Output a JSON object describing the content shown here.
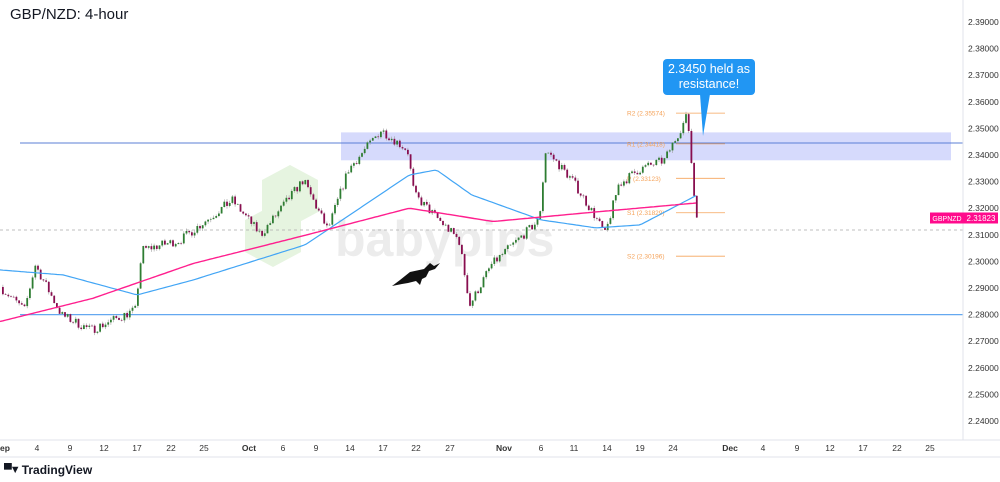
{
  "title": "GBP/NZD: 4-hour",
  "callout": "2.3450 held as resistance!",
  "brand": "TradingView",
  "watermark": "babypips",
  "symbol_tag": "GBPNZD",
  "last_price": "2.31823",
  "colors": {
    "up": "#2e7d32",
    "down": "#880e4f",
    "wick": "#9e9e9e",
    "ma_fast": "#42a5f5",
    "ma_slow": "#ff1f8e",
    "zone": "#cfd3fb",
    "level": "#2962ff",
    "pivot": "#f5a35a",
    "callout": "#2196f3",
    "price_tag": "#ff0a8c"
  },
  "chart_data": {
    "type": "candlestick",
    "title": "GBP/NZD: 4-hour",
    "ylim": [
      2.235,
      2.395
    ],
    "y_ticks": [
      "2.39000",
      "2.38000",
      "2.37000",
      "2.36000",
      "2.35000",
      "2.34000",
      "2.33000",
      "2.32000",
      "2.31000",
      "2.30000",
      "2.29000",
      "2.28000",
      "2.27000",
      "2.26000",
      "2.25000",
      "2.24000"
    ],
    "x_ticks": [
      "ep",
      "4",
      "9",
      "12",
      "17",
      "22",
      "25",
      "Oct",
      "6",
      "9",
      "14",
      "17",
      "22",
      "27",
      "Nov",
      "6",
      "11",
      "14",
      "19",
      "24",
      "Dec",
      "4",
      "9",
      "12",
      "17",
      "22",
      "25"
    ],
    "price_path": [
      {
        "date": "Aug 31",
        "price": 2.2911
      },
      {
        "date": "Sep 3",
        "price": 2.2817
      },
      {
        "date": "Sep 4",
        "price": 2.2987
      },
      {
        "date": "Sep 8",
        "price": 2.2798
      },
      {
        "date": "Sep 11",
        "price": 2.2742
      },
      {
        "date": "Sep 17",
        "price": 2.2817
      },
      {
        "date": "Sep 18",
        "price": 2.3043
      },
      {
        "date": "Sep 23",
        "price": 2.308
      },
      {
        "date": "Sep 29",
        "price": 2.323
      },
      {
        "date": "Oct 3",
        "price": 2.31
      },
      {
        "date": "Oct 8",
        "price": 2.3306
      },
      {
        "date": "Oct 11",
        "price": 2.3118
      },
      {
        "date": "Oct 14",
        "price": 2.3344
      },
      {
        "date": "Oct 17",
        "price": 2.3494
      },
      {
        "date": "Oct 21",
        "price": 2.3419
      },
      {
        "date": "Oct 22",
        "price": 2.325
      },
      {
        "date": "Oct 28",
        "price": 2.308
      },
      {
        "date": "Oct 29",
        "price": 2.2836
      },
      {
        "date": "Oct 31",
        "price": 2.2987
      },
      {
        "date": "Nov 6",
        "price": 2.3156
      },
      {
        "date": "Nov 7",
        "price": 2.3419
      },
      {
        "date": "Nov 11",
        "price": 2.3306
      },
      {
        "date": "Nov 13",
        "price": 2.3175
      },
      {
        "date": "Nov 14",
        "price": 2.31
      },
      {
        "date": "Nov 16",
        "price": 2.3287
      },
      {
        "date": "Nov 19",
        "price": 2.3344
      },
      {
        "date": "Nov 23",
        "price": 2.3381
      },
      {
        "date": "Nov 26",
        "price": 2.355
      },
      {
        "date": "Nov 27",
        "price": 2.3182
      }
    ],
    "ma_fast": [
      {
        "date": "Aug 31",
        "price": 2.2968
      },
      {
        "date": "Sep 8",
        "price": 2.2949
      },
      {
        "date": "Sep 17",
        "price": 2.2874
      },
      {
        "date": "Sep 24",
        "price": 2.293
      },
      {
        "date": "Oct 8",
        "price": 2.3062
      },
      {
        "date": "Oct 21",
        "price": 2.3325
      },
      {
        "date": "Oct 25",
        "price": 2.3344
      },
      {
        "date": "Oct 29",
        "price": 2.325
      },
      {
        "date": "Nov 6",
        "price": 2.3156
      },
      {
        "date": "Nov 13",
        "price": 2.3126
      },
      {
        "date": "Nov 19",
        "price": 2.3137
      },
      {
        "date": "Nov 27",
        "price": 2.325
      }
    ],
    "ma_slow": [
      {
        "date": "Aug 31",
        "price": 2.2774
      },
      {
        "date": "Sep 11",
        "price": 2.2861
      },
      {
        "date": "Sep 24",
        "price": 2.2992
      },
      {
        "date": "Oct 8",
        "price": 2.3098
      },
      {
        "date": "Oct 21",
        "price": 2.32
      },
      {
        "date": "Oct 31",
        "price": 2.315
      },
      {
        "date": "Nov 13",
        "price": 2.3186
      },
      {
        "date": "Nov 27",
        "price": 2.322
      }
    ],
    "levels": {
      "resistance": 2.3445,
      "support": 2.28,
      "previous_close": 2.3118,
      "zone": [
        2.338,
        2.3485
      ]
    },
    "pivots": [
      {
        "label": "R2 (2.35574)",
        "value": 2.35574
      },
      {
        "label": "R1 (2.34418)",
        "value": 2.34418
      },
      {
        "label": "P (2.33123)",
        "value": 2.33123
      },
      {
        "label": "S1 (2.31829)",
        "value": 2.31829
      },
      {
        "label": "S2 (2.30196)",
        "value": 2.30196
      }
    ],
    "grid": false
  }
}
